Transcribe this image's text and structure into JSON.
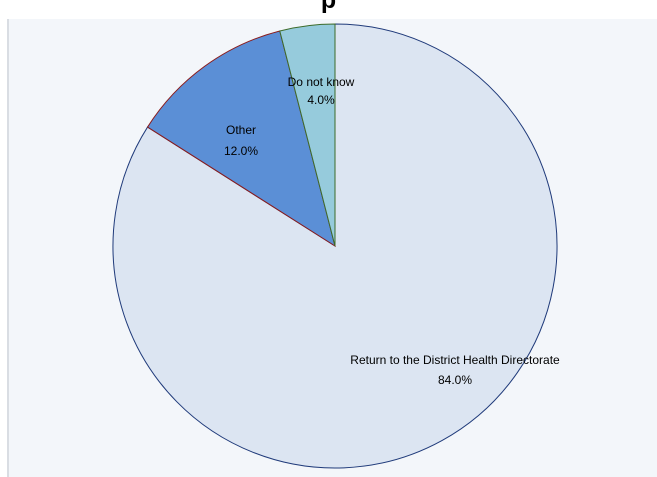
{
  "title": "p",
  "chart_data": {
    "type": "pie",
    "title": "",
    "slices": [
      {
        "label": "Return to the District Health Directorate",
        "value": 84.0,
        "value_label": "84.0%",
        "color": "#dce5f2",
        "edge": "#1f3a7a"
      },
      {
        "label": "Other",
        "value": 12.0,
        "value_label": "12.0%",
        "color": "#5b8fd6",
        "edge": "#8b1a1a"
      },
      {
        "label": "Do not know",
        "value": 4.0,
        "value_label": "4.0%",
        "color": "#96cbdc",
        "edge": "#3d6b2a"
      }
    ],
    "legend": "none",
    "start": "top",
    "direction": "clockwise"
  }
}
